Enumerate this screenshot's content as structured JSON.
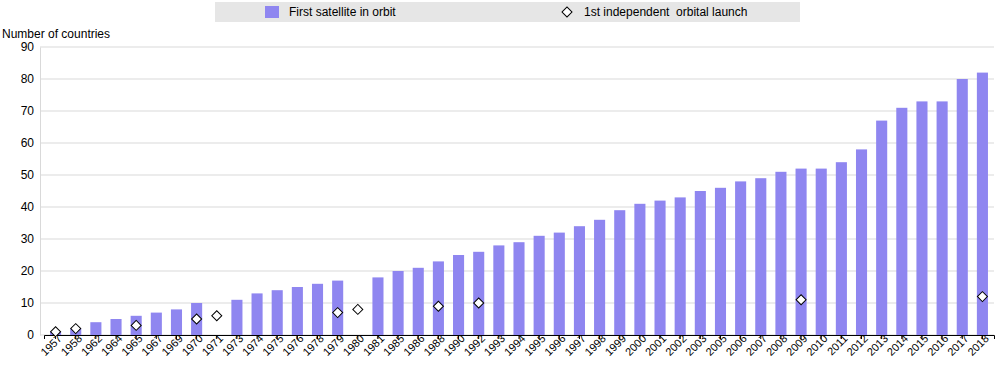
{
  "chart_data": {
    "type": "bar",
    "y_label": "Number of countries",
    "categories": [
      "1957",
      "1958",
      "1962",
      "1964",
      "1965",
      "1967",
      "1969",
      "1970",
      "1971",
      "1973",
      "1974",
      "1975",
      "1976",
      "1978",
      "1979",
      "1980",
      "1981",
      "1985",
      "1986",
      "1988",
      "1990",
      "1992",
      "1993",
      "1994",
      "1995",
      "1996",
      "1997",
      "1998",
      "1999",
      "2000",
      "2001",
      "2002",
      "2003",
      "2005",
      "2006",
      "2007",
      "2008",
      "2009",
      "2010",
      "2011",
      "2012",
      "2013",
      "2014",
      "2015",
      "2016",
      "2017",
      "2018"
    ],
    "series": [
      {
        "name": "First satellite in orbit",
        "type": "bar",
        "color": "#8f86f0",
        "values": [
          1,
          2,
          4,
          5,
          6,
          7,
          8,
          10,
          null,
          11,
          13,
          14,
          15,
          16,
          17,
          null,
          18,
          20,
          21,
          23,
          25,
          26,
          28,
          29,
          31,
          32,
          34,
          36,
          39,
          41,
          42,
          43,
          45,
          46,
          48,
          49,
          51,
          52,
          52,
          54,
          58,
          67,
          71,
          73,
          73,
          80,
          82
        ]
      },
      {
        "name": "1st independent  orbital launch",
        "type": "scatter",
        "marker": "diamond",
        "color": "#ffffff",
        "values": [
          1,
          2,
          null,
          null,
          3,
          null,
          null,
          5,
          6,
          null,
          null,
          null,
          null,
          null,
          7,
          8,
          null,
          null,
          null,
          9,
          null,
          10,
          null,
          null,
          null,
          null,
          null,
          null,
          null,
          null,
          null,
          null,
          null,
          null,
          null,
          null,
          null,
          11,
          null,
          null,
          null,
          null,
          null,
          null,
          null,
          null,
          12
        ]
      }
    ],
    "ylim": [
      0,
      90
    ],
    "yticks": [
      0,
      10,
      20,
      30,
      40,
      50,
      60,
      70,
      80,
      90
    ],
    "grid": true,
    "legend": "top"
  }
}
